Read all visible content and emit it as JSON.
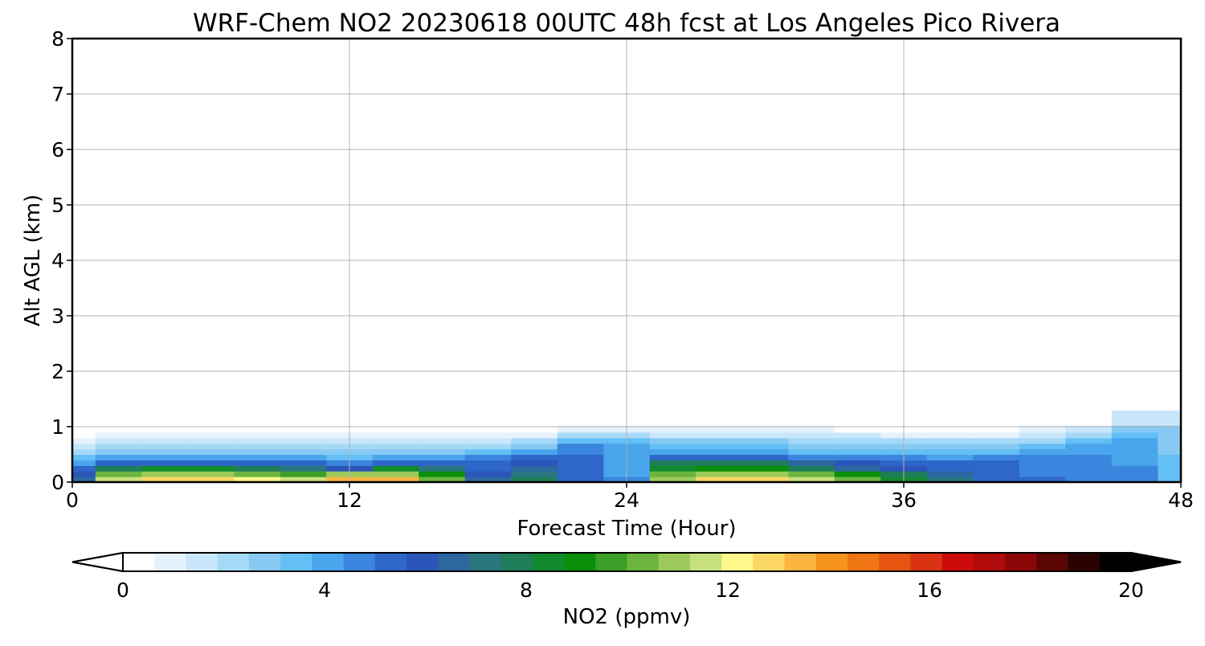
{
  "chart_data": {
    "type": "heatmap",
    "title": "WRF-Chem NO2  20230618 00UTC 48h fcst at Los Angeles Pico Rivera",
    "xlabel": "Forecast Time (Hour)",
    "ylabel": "Alt AGL (km)",
    "xlim": [
      0,
      48
    ],
    "ylim": [
      0,
      8
    ],
    "xticks": [
      "0",
      "12",
      "24",
      "36",
      "48"
    ],
    "yticks": [
      "0",
      "1",
      "2",
      "3",
      "4",
      "5",
      "6",
      "7",
      "8"
    ],
    "grid": true,
    "colorbar": {
      "label": "NO2  (ppmv)",
      "range": [
        0,
        20
      ],
      "ticks": [
        "0",
        "4",
        "8",
        "12",
        "16",
        "20"
      ],
      "extend": "both",
      "colors": [
        "#ffffff",
        "#e6f2fb",
        "#c9e7fa",
        "#a6d9f7",
        "#86caf3",
        "#63bff4",
        "#4aa6ec",
        "#3a85dd",
        "#2f66c9",
        "#2b55b8",
        "#2c67a0",
        "#2a767f",
        "#1f7d59",
        "#108a2c",
        "#0a8f0a",
        "#3c9f27",
        "#6bb43e",
        "#9bca5b",
        "#c6e07f",
        "#fff78a",
        "#fbd663",
        "#f9b540",
        "#f6921e",
        "#ef7412",
        "#e55511",
        "#d83212",
        "#cc0b0b",
        "#b00a0a",
        "#8b0707",
        "#5a0404",
        "#2a0202",
        "#000000"
      ]
    },
    "x_hours": [
      0,
      2,
      4,
      6,
      8,
      10,
      12,
      14,
      16,
      18,
      20,
      22,
      24,
      26,
      28,
      30,
      32,
      34,
      36,
      38,
      40,
      42,
      44,
      46,
      48
    ],
    "z_levels_km": [
      0.05,
      0.15,
      0.25,
      0.35,
      0.45,
      0.55,
      0.65,
      0.75,
      0.85,
      0.95,
      1.1,
      1.5,
      2.0,
      3.0,
      5.0,
      8.0
    ],
    "values_ppmv": [
      [
        6.5,
        11.5,
        12.5,
        12.5,
        12.0,
        11.5,
        13.5,
        13.5,
        10.5,
        6.5,
        7.5,
        5.5,
        4.5,
        11.0,
        12.5,
        12.5,
        11.5,
        10.5,
        8.5,
        7.0,
        5.5,
        5.0,
        4.8,
        4.6,
        3.5
      ],
      [
        6.0,
        10.0,
        11.0,
        11.0,
        10.5,
        9.5,
        11.0,
        11.0,
        9.0,
        6.0,
        7.0,
        5.3,
        4.3,
        10.0,
        11.0,
        11.0,
        10.0,
        9.0,
        7.5,
        6.5,
        5.3,
        4.9,
        4.7,
        4.5,
        3.4
      ],
      [
        5.0,
        7.8,
        8.4,
        8.2,
        7.8,
        7.2,
        6.0,
        8.4,
        7.0,
        5.6,
        6.8,
        5.2,
        4.2,
        8.5,
        9.0,
        8.8,
        7.8,
        6.8,
        6.2,
        5.6,
        5.2,
        4.8,
        4.6,
        4.4,
        3.3
      ],
      [
        4.2,
        5.4,
        5.6,
        5.5,
        5.3,
        5.0,
        4.5,
        5.6,
        5.4,
        5.3,
        6.2,
        5.1,
        4.2,
        7.6,
        8.0,
        7.8,
        6.8,
        5.8,
        5.5,
        5.1,
        5.0,
        4.7,
        4.5,
        4.3,
        3.3
      ],
      [
        3.3,
        4.0,
        4.1,
        4.0,
        3.9,
        3.8,
        3.6,
        4.0,
        3.9,
        4.4,
        5.4,
        5.0,
        4.1,
        5.4,
        5.6,
        5.4,
        4.9,
        4.6,
        4.4,
        4.3,
        4.5,
        4.6,
        4.4,
        4.2,
        3.2
      ],
      [
        2.4,
        3.0,
        3.1,
        3.0,
        2.9,
        2.8,
        2.7,
        2.9,
        2.9,
        3.3,
        4.2,
        4.8,
        4.0,
        4.1,
        4.3,
        4.1,
        3.7,
        3.5,
        3.3,
        3.2,
        3.5,
        4.0,
        4.3,
        4.1,
        3.1
      ],
      [
        1.6,
        2.2,
        2.2,
        2.2,
        2.1,
        2.0,
        1.9,
        2.1,
        2.1,
        2.2,
        2.8,
        4.5,
        3.8,
        3.4,
        3.5,
        3.3,
        3.0,
        2.8,
        2.6,
        2.5,
        2.8,
        3.3,
        4.0,
        4.0,
        3.1
      ],
      [
        0.9,
        1.5,
        1.5,
        1.5,
        1.4,
        1.3,
        1.3,
        1.4,
        1.4,
        1.5,
        1.9,
        3.6,
        3.3,
        2.7,
        2.7,
        2.5,
        2.3,
        2.1,
        2.0,
        1.9,
        2.0,
        2.4,
        3.3,
        3.8,
        3.0
      ],
      [
        0.5,
        0.8,
        0.8,
        0.8,
        0.8,
        0.7,
        0.7,
        0.8,
        0.8,
        0.8,
        1.0,
        2.0,
        2.0,
        1.7,
        1.7,
        1.5,
        1.4,
        1.3,
        1.2,
        1.1,
        1.2,
        1.5,
        2.4,
        3.5,
        2.9
      ],
      [
        0.25,
        0.4,
        0.45,
        0.45,
        0.4,
        0.35,
        0.35,
        0.4,
        0.4,
        0.4,
        0.5,
        0.9,
        0.9,
        0.8,
        0.8,
        0.7,
        0.7,
        0.6,
        0.6,
        0.5,
        0.6,
        0.7,
        1.3,
        3.0,
        2.8
      ],
      [
        0.15,
        0.2,
        0.2,
        0.2,
        0.2,
        0.15,
        0.15,
        0.2,
        0.2,
        0.2,
        0.2,
        0.3,
        0.3,
        0.3,
        0.3,
        0.25,
        0.25,
        0.2,
        0.2,
        0.2,
        0.2,
        0.25,
        0.4,
        1.5,
        1.4
      ],
      [
        0.1,
        0.1,
        0.1,
        0.1,
        0.1,
        0.15,
        0.25,
        0.15,
        0.1,
        0.1,
        0.1,
        0.1,
        0.1,
        0.1,
        0.1,
        0.1,
        0.1,
        0.1,
        0.1,
        0.1,
        0.1,
        0.1,
        0.1,
        0.15,
        0.15
      ],
      [
        0.05,
        0.05,
        0.05,
        0.05,
        0.05,
        0.2,
        0.2,
        0.1,
        0.05,
        0.05,
        0.05,
        0.05,
        0.05,
        0.05,
        0.05,
        0.05,
        0.05,
        0.05,
        0.05,
        0.05,
        0.05,
        0.05,
        0.05,
        0.05,
        0.05
      ],
      [
        0.05,
        0.05,
        0.05,
        0.05,
        0.05,
        0.05,
        0.05,
        0.05,
        0.05,
        0.05,
        0.05,
        0.05,
        0.05,
        0.05,
        0.05,
        0.05,
        0.05,
        0.05,
        0.05,
        0.05,
        0.05,
        0.05,
        0.05,
        0.05,
        0.05
      ],
      [
        0.05,
        0.05,
        0.05,
        0.05,
        0.05,
        0.05,
        0.05,
        0.05,
        0.05,
        0.05,
        0.05,
        0.05,
        0.05,
        0.05,
        0.05,
        0.05,
        0.05,
        0.05,
        0.05,
        0.05,
        0.05,
        0.05,
        0.05,
        0.05,
        0.05
      ],
      [
        0.05,
        0.05,
        0.05,
        0.05,
        0.05,
        0.05,
        0.05,
        0.05,
        0.05,
        0.05,
        0.05,
        0.05,
        0.05,
        0.05,
        0.05,
        0.05,
        0.05,
        0.05,
        0.05,
        0.05,
        0.05,
        0.05,
        0.05,
        0.05,
        0.05
      ]
    ]
  }
}
